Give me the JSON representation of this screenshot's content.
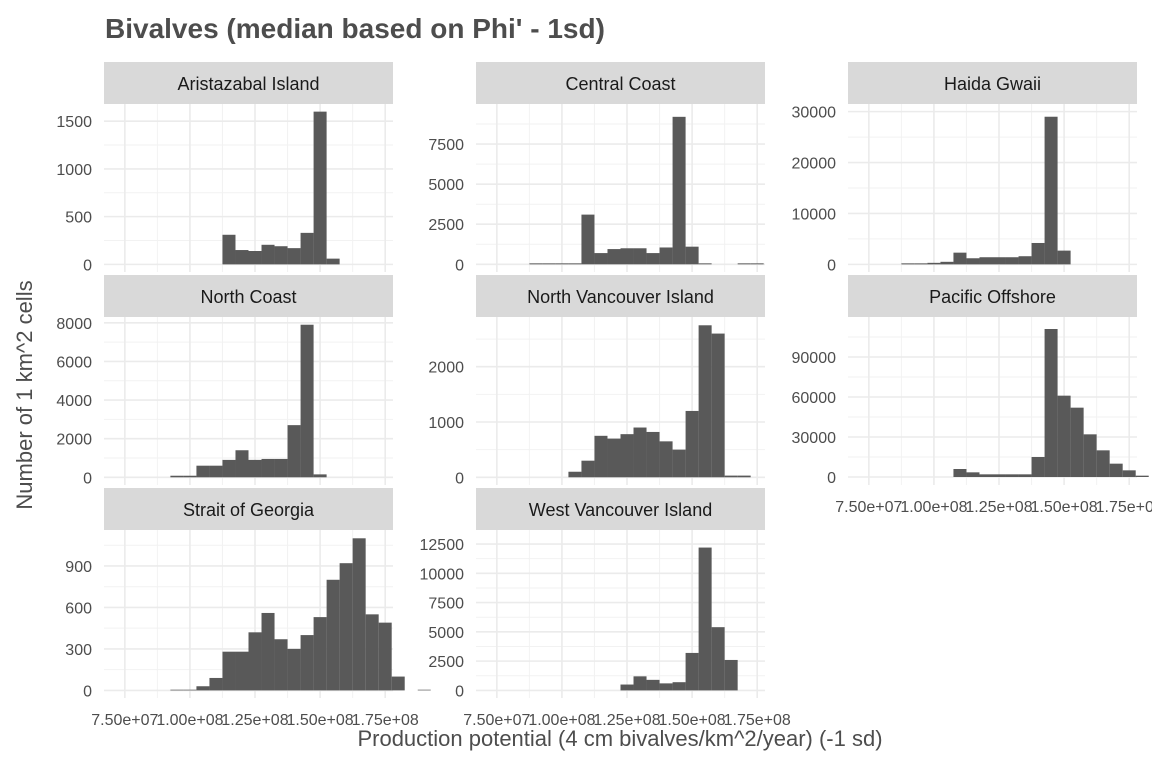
{
  "chart_data": {
    "type": "bar",
    "title": "Bivalves (median based on Phi' - 1sd)",
    "xlabel": "Production potential (4 cm bivalves/km^2/year) (-1 sd)",
    "ylabel": "Number of 1 km^2 cells",
    "x_ticks": [
      75000000,
      100000000,
      125000000,
      150000000,
      175000000
    ],
    "x_tick_labels": [
      "7.50e+07",
      "1.00e+08",
      "1.25e+08",
      "1.50e+08",
      "1.75e+08"
    ],
    "xlim": [
      67000000,
      178000000
    ],
    "grid": true,
    "bin_width": 5000000,
    "bin_start": 87500000,
    "panels": [
      {
        "name": "Aristazabal Island",
        "yticks": [
          0,
          500,
          1000,
          1500
        ],
        "ylim": [
          -80,
          1680
        ],
        "values": [
          0,
          0,
          0,
          0,
          0,
          310,
          150,
          140,
          205,
          190,
          170,
          330,
          1600,
          60,
          0,
          0,
          0,
          0,
          0,
          0,
          0
        ]
      },
      {
        "name": "Central Coast",
        "yticks": [
          0,
          2500,
          5000,
          7500
        ],
        "ylim": [
          -480,
          10000
        ],
        "values": [
          60,
          60,
          60,
          60,
          3100,
          700,
          950,
          1000,
          1000,
          700,
          1050,
          9200,
          1100,
          60,
          0,
          0,
          60,
          60,
          0,
          0,
          0
        ]
      },
      {
        "name": "Haida Gwaii",
        "yticks": [
          0,
          10000,
          20000,
          30000
        ],
        "ylim": [
          -1500,
          31500
        ],
        "values": [
          200,
          200,
          300,
          500,
          2300,
          1200,
          1400,
          1400,
          1400,
          1600,
          4200,
          29000,
          2700,
          0,
          0,
          0,
          0,
          0,
          0,
          0,
          0
        ]
      },
      {
        "name": "North Coast",
        "yticks": [
          0,
          2000,
          4000,
          6000,
          8000
        ],
        "ylim": [
          -400,
          8300
        ],
        "values": [
          0,
          80,
          80,
          600,
          600,
          900,
          1400,
          900,
          950,
          950,
          2700,
          7900,
          150,
          0,
          0,
          0,
          0,
          0,
          0,
          0,
          0
        ]
      },
      {
        "name": "North Vancouver Island",
        "yticks": [
          0,
          1000,
          2000
        ],
        "ylim": [
          -140,
          2900
        ],
        "values": [
          0,
          0,
          0,
          100,
          300,
          750,
          700,
          780,
          900,
          820,
          650,
          500,
          1200,
          2750,
          2600,
          30,
          30,
          0,
          0,
          0,
          0
        ]
      },
      {
        "name": "Pacific Offshore",
        "yticks": [
          0,
          30000,
          60000,
          90000
        ],
        "ylim": [
          -6000,
          120000
        ],
        "values": [
          0,
          0,
          0,
          0,
          6000,
          3500,
          2000,
          2000,
          2000,
          2000,
          15000,
          111000,
          61000,
          52000,
          32000,
          20000,
          10000,
          5000,
          1000,
          0,
          0
        ]
      },
      {
        "name": "Strait of Georgia",
        "yticks": [
          0,
          300,
          600,
          900
        ],
        "ylim": [
          -55,
          1160
        ],
        "values": [
          0,
          5,
          5,
          30,
          90,
          280,
          280,
          420,
          560,
          370,
          300,
          400,
          530,
          800,
          920,
          1100,
          550,
          490,
          100,
          0,
          5
        ]
      },
      {
        "name": "West Vancouver Island",
        "yticks": [
          0,
          2500,
          5000,
          7500,
          10000,
          12500
        ],
        "ylim": [
          -650,
          13700
        ],
        "values": [
          0,
          0,
          0,
          0,
          0,
          0,
          0,
          500,
          1200,
          900,
          600,
          700,
          3200,
          12200,
          5400,
          2600,
          0,
          0,
          0,
          0,
          0
        ]
      }
    ]
  }
}
